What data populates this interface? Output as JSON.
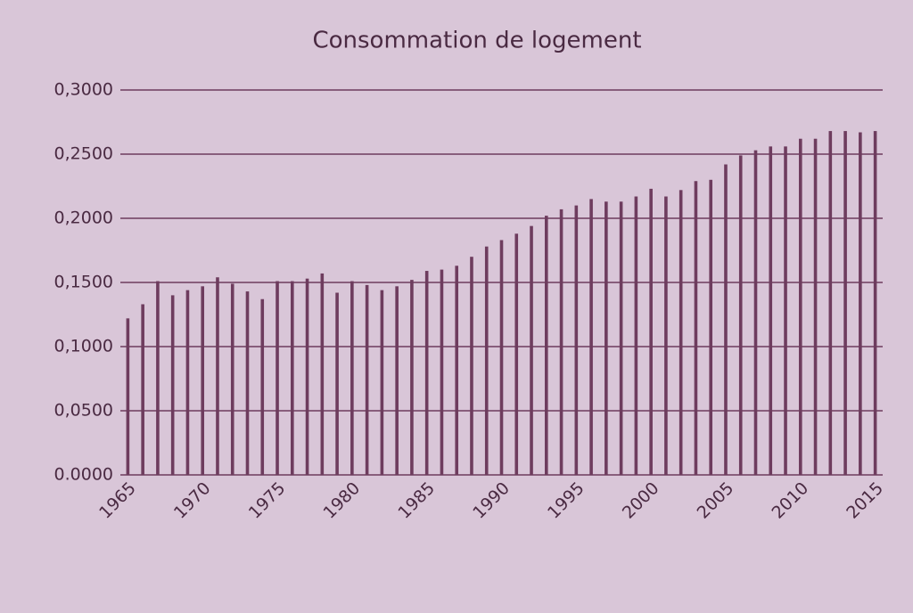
{
  "chart_data": {
    "type": "bar",
    "title": "Consommation de logement",
    "categories": [
      "1965",
      null,
      null,
      null,
      null,
      "1970",
      null,
      null,
      null,
      null,
      "1975",
      null,
      null,
      null,
      null,
      "1980",
      null,
      null,
      null,
      null,
      "1985",
      null,
      null,
      null,
      null,
      "1990",
      null,
      null,
      null,
      null,
      "1995",
      null,
      null,
      null,
      null,
      "2000",
      null,
      null,
      null,
      null,
      "2005",
      null,
      null,
      null,
      null,
      "2010",
      null,
      null,
      null,
      null,
      "2015"
    ],
    "values": [
      0.122,
      0.133,
      0.151,
      0.14,
      0.144,
      0.147,
      0.154,
      0.149,
      0.143,
      0.137,
      0.151,
      0.151,
      0.153,
      0.157,
      0.142,
      0.151,
      0.148,
      0.144,
      0.147,
      0.152,
      0.159,
      0.16,
      0.163,
      0.17,
      0.178,
      0.183,
      0.188,
      0.194,
      0.202,
      0.207,
      0.21,
      0.215,
      0.213,
      0.213,
      0.217,
      0.223,
      0.217,
      0.222,
      0.229,
      0.23,
      0.242,
      0.249,
      0.253,
      0.256,
      0.256,
      0.262,
      0.262,
      0.268,
      0.268,
      0.267,
      0.268
    ],
    "color": "#6e3c5e",
    "ylim": [
      0,
      0.3
    ],
    "yticks": [
      {
        "value": 0,
        "label": "0.0000"
      },
      {
        "value": 0.05,
        "label": "0,0500"
      },
      {
        "value": 0.1,
        "label": "0,1000"
      },
      {
        "value": 0.15,
        "label": "0,1500"
      },
      {
        "value": 0.2,
        "label": "0,2000"
      },
      {
        "value": 0.25,
        "label": "0,2500"
      },
      {
        "value": 0.3,
        "label": "0,3000"
      }
    ],
    "grid": true
  }
}
